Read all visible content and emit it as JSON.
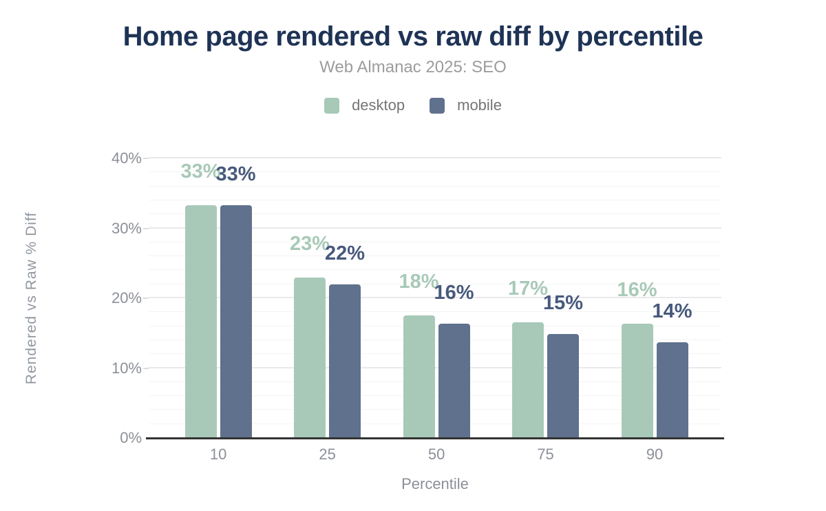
{
  "title": "Home page rendered vs raw diff by percentile",
  "subtitle": "Web Almanac 2025: SEO",
  "legend": [
    {
      "label": "desktop",
      "color": "#a8c9b8"
    },
    {
      "label": "mobile",
      "color": "#5f718c"
    }
  ],
  "colors": {
    "title_text": "#1e3355",
    "subtitle_text": "#9c9c9c",
    "axis_text": "#8b8f97",
    "legend_text": "#757575",
    "desktop_bar": "#a8c9b8",
    "mobile_bar": "#5f718c",
    "desktop_label": "#a8c9b8",
    "mobile_label": "#47597c",
    "axis_line": "#333333",
    "grid_major": "#e9e9ec",
    "grid_minor": "#f4f4f6"
  },
  "chart_data": {
    "type": "bar",
    "title": "Home page rendered vs raw diff by percentile",
    "subtitle": "Web Almanac 2025: SEO",
    "categories": [
      "10",
      "25",
      "50",
      "75",
      "90"
    ],
    "series": [
      {
        "name": "desktop",
        "color": "#a8c9b8",
        "label_color": "#a8c9b8",
        "values": [
          33.3,
          23.0,
          17.5,
          16.6,
          16.4
        ],
        "labels": [
          "33%",
          "23%",
          "18%",
          "17%",
          "16%"
        ]
      },
      {
        "name": "mobile",
        "color": "#5f718c",
        "label_color": "#47597c",
        "values": [
          33.3,
          22.0,
          16.4,
          14.9,
          13.7
        ],
        "labels": [
          "33%",
          "22%",
          "16%",
          "15%",
          "14%"
        ]
      }
    ],
    "xlabel": "Percentile",
    "ylabel": "Rendered vs Raw % Diff",
    "ylim": [
      0,
      40
    ],
    "yticks": [
      {
        "value": 0,
        "label": "0%"
      },
      {
        "value": 10,
        "label": "10%"
      },
      {
        "value": 20,
        "label": "20%"
      },
      {
        "value": 30,
        "label": "30%"
      },
      {
        "value": 40,
        "label": "40%"
      }
    ],
    "grid": {
      "on": true,
      "minor_step": 2,
      "major_step": 10
    },
    "legend_position": "top",
    "data_labels": true
  }
}
